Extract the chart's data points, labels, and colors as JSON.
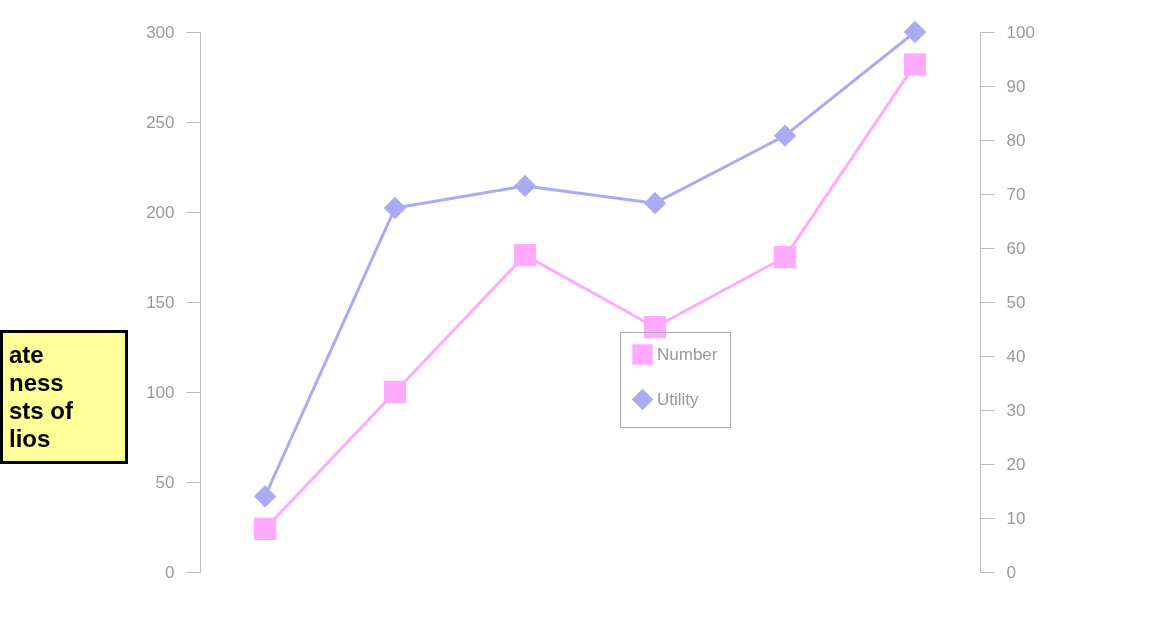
{
  "chart_data": {
    "type": "line",
    "categories": [
      null,
      null,
      null,
      null,
      null,
      null
    ],
    "series": [
      {
        "name": "Number",
        "color": "#ffaaff",
        "marker": "square",
        "values": [
          24,
          100,
          176,
          136,
          175,
          282
        ]
      },
      {
        "name": "Utility",
        "color": "#aaaaf5",
        "marker": "diamond",
        "axis": "y2",
        "values": [
          14,
          67.4,
          71.5,
          68.3,
          80.8,
          100
        ]
      }
    ],
    "ylim": [
      0,
      300
    ],
    "yticks": [
      0,
      50,
      100,
      150,
      200,
      250,
      300
    ],
    "y2lim": [
      0,
      100
    ],
    "y2ticks": [
      0,
      10,
      20,
      30,
      40,
      50,
      60,
      70,
      80,
      90,
      100
    ],
    "legend": "right",
    "grid": false,
    "line_style": "solid",
    "annotations": [
      "ate\nness\nsts of\nlios"
    ]
  }
}
